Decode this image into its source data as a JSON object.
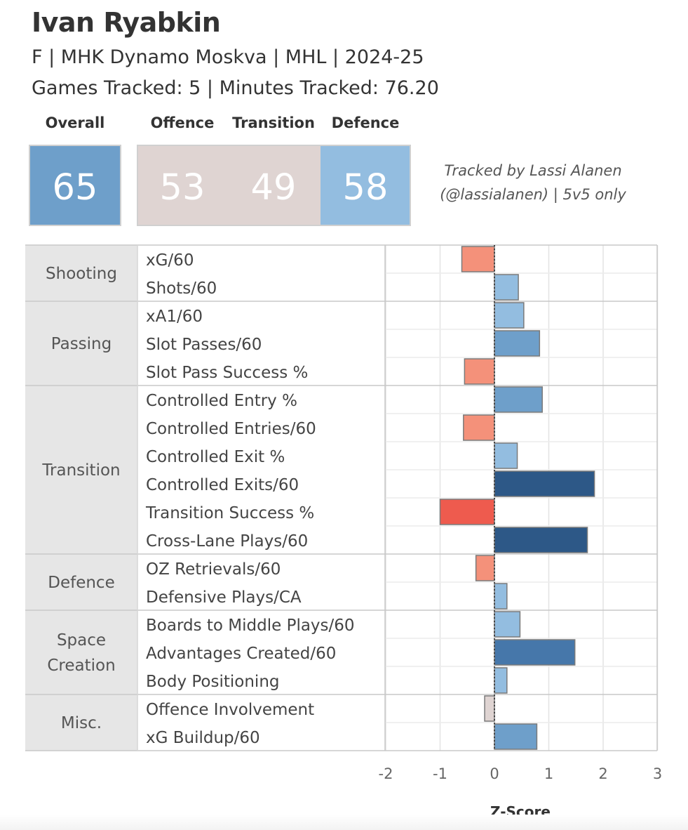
{
  "player": {
    "name": "Ivan Ryabkin",
    "subtitle": "F | MHK Dynamo Moskva | MHL | 2024-25",
    "games_line": "Games Tracked: 5 | Minutes Tracked: 76.20"
  },
  "scores": {
    "overall": {
      "label": "Overall",
      "value": "65",
      "color": "#6e9fca"
    },
    "offence": {
      "label": "Offence",
      "value": "53",
      "color": "#dfd4d2"
    },
    "transition": {
      "label": "Transition",
      "value": "49",
      "color": "#dfd4d2"
    },
    "defence": {
      "label": "Defence",
      "value": "58",
      "color": "#93bde0"
    }
  },
  "credit": {
    "line1": "Tracked by Lassi Alanen",
    "line2": "(@lassialanen) | 5v5 only"
  },
  "chart_data": {
    "type": "bar",
    "orientation": "horizontal",
    "xlabel": "Z-Score",
    "xlim": [
      -2,
      3
    ],
    "xticks": [
      -2,
      -1,
      0,
      1,
      2,
      3
    ],
    "groups": [
      {
        "name": "Shooting",
        "lines": [
          "Shooting"
        ],
        "metrics": [
          {
            "label": "xG/60",
            "value": -0.6,
            "color": "#f4917a"
          },
          {
            "label": "Shots/60",
            "value": 0.44,
            "color": "#93bde0"
          }
        ]
      },
      {
        "name": "Passing",
        "lines": [
          "Passing"
        ],
        "metrics": [
          {
            "label": "xA1/60",
            "value": 0.54,
            "color": "#93bde0"
          },
          {
            "label": "Slot Passes/60",
            "value": 0.83,
            "color": "#6e9fca"
          },
          {
            "label": "Slot Pass Success %",
            "value": -0.55,
            "color": "#f4917a"
          }
        ]
      },
      {
        "name": "Transition",
        "lines": [
          "Transition"
        ],
        "metrics": [
          {
            "label": "Controlled Entry %",
            "value": 0.88,
            "color": "#6e9fca"
          },
          {
            "label": "Controlled Entries/60",
            "value": -0.57,
            "color": "#f4917a"
          },
          {
            "label": "Controlled Exit %",
            "value": 0.42,
            "color": "#93bde0"
          },
          {
            "label": "Controlled Exits/60",
            "value": 1.84,
            "color": "#2d5887"
          },
          {
            "label": "Transition Success %",
            "value": -1.0,
            "color": "#ee5b4e"
          },
          {
            "label": "Cross-Lane Plays/60",
            "value": 1.71,
            "color": "#2d5887"
          }
        ]
      },
      {
        "name": "Defence",
        "lines": [
          "Defence"
        ],
        "metrics": [
          {
            "label": "OZ Retrievals/60",
            "value": -0.34,
            "color": "#f4917a"
          },
          {
            "label": "Defensive Plays/CA",
            "value": 0.23,
            "color": "#93bde0"
          }
        ]
      },
      {
        "name": "Space Creation",
        "lines": [
          "Space",
          "Creation"
        ],
        "metrics": [
          {
            "label": "Boards to Middle Plays/60",
            "value": 0.47,
            "color": "#93bde0"
          },
          {
            "label": "Advantages Created/60",
            "value": 1.48,
            "color": "#4677aa"
          },
          {
            "label": "Body Positioning",
            "value": 0.23,
            "color": "#93bde0"
          }
        ]
      },
      {
        "name": "Misc.",
        "lines": [
          "Misc."
        ],
        "metrics": [
          {
            "label": "Offence Involvement",
            "value": -0.18,
            "color": "#dfd4d2"
          },
          {
            "label": "xG Buildup/60",
            "value": 0.78,
            "color": "#6e9fca"
          }
        ]
      }
    ]
  }
}
